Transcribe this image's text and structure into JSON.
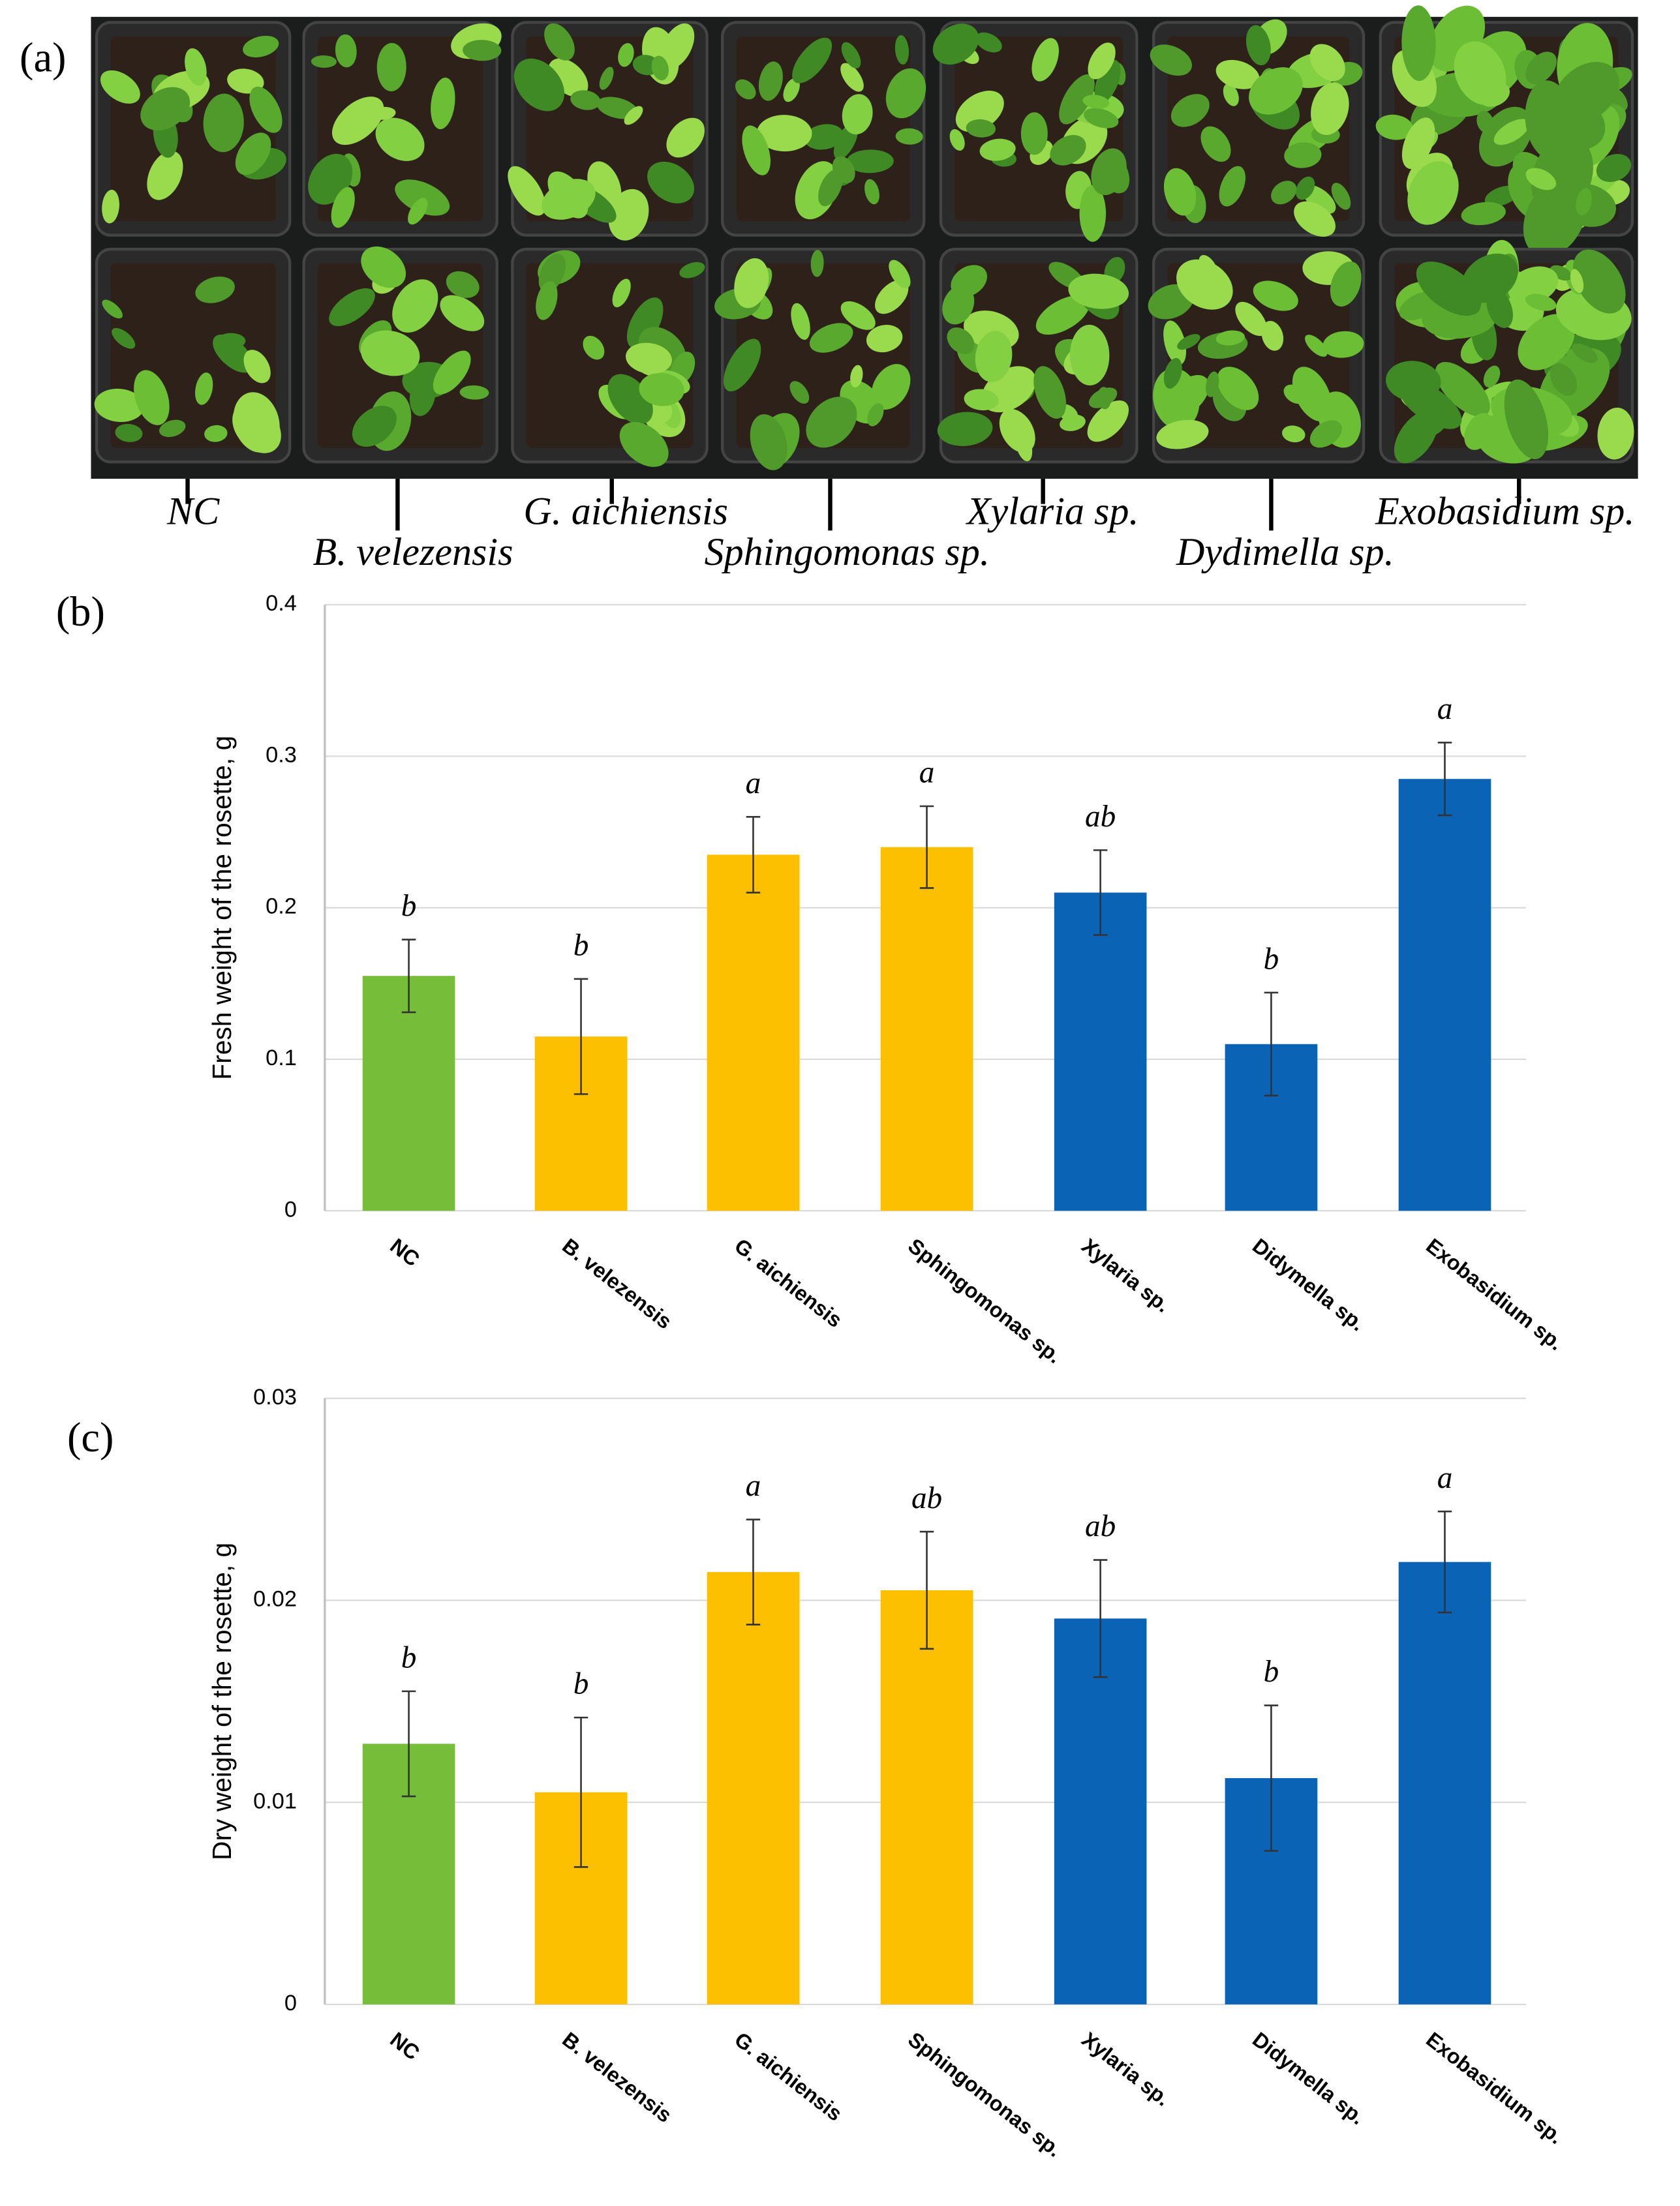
{
  "photo": {
    "panel_label": "(a)",
    "captions": [
      "NC",
      "B. velezensis",
      "G. aichiensis",
      "Sphingomonas sp.",
      "Xylaria sp.",
      "Dydimella sp.",
      "Exobasidium sp."
    ]
  },
  "chart_data": [
    {
      "type": "bar",
      "panel_label": "(b)",
      "ylabel": "Fresh weight of the rosette, g",
      "categories": [
        "NC",
        "B. velezensis",
        "G. aichiensis",
        "Sphingomonas sp.",
        "Xylaria sp.",
        "Didymella sp.",
        "Exobasidium sp."
      ],
      "values": [
        0.155,
        0.115,
        0.235,
        0.24,
        0.21,
        0.11,
        0.285
      ],
      "errors": [
        0.024,
        0.038,
        0.025,
        0.027,
        0.028,
        0.034,
        0.024
      ],
      "annotations": [
        "b",
        "b",
        "a",
        "a",
        "ab",
        "b",
        "a"
      ],
      "colors": [
        "#76bd3a",
        "#fcc000",
        "#fcc000",
        "#fcc000",
        "#0a63b4",
        "#0a63b4",
        "#0a63b4"
      ],
      "ylim": [
        0,
        0.4
      ],
      "yticks": [
        0,
        0.1,
        0.2,
        0.3,
        0.4
      ],
      "grid": true
    },
    {
      "type": "bar",
      "panel_label": "(c)",
      "ylabel": "Dry weight of the rosette, g",
      "categories": [
        "NC",
        "B. velezensis",
        "G. aichiensis",
        "Sphingomonas sp.",
        "Xylaria sp.",
        "Didymella sp.",
        "Exobasidium sp."
      ],
      "values": [
        0.0129,
        0.0105,
        0.0214,
        0.0205,
        0.0191,
        0.0112,
        0.0219
      ],
      "errors": [
        0.0026,
        0.0037,
        0.0026,
        0.0029,
        0.0029,
        0.0036,
        0.0025
      ],
      "annotations": [
        "b",
        "b",
        "a",
        "ab",
        "ab",
        "b",
        "a"
      ],
      "colors": [
        "#76bd3a",
        "#fcc000",
        "#fcc000",
        "#fcc000",
        "#0a63b4",
        "#0a63b4",
        "#0a63b4"
      ],
      "ylim": [
        0,
        0.03
      ],
      "yticks": [
        0,
        0.01,
        0.02,
        0.03
      ],
      "grid": true
    }
  ]
}
